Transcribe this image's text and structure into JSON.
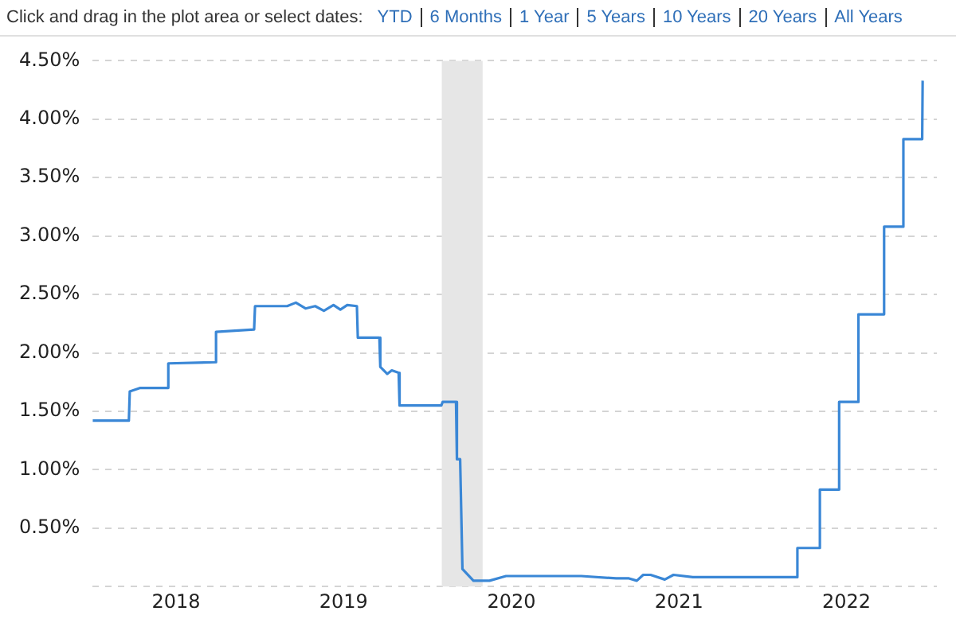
{
  "chart_data": {
    "type": "line",
    "annotations": [
      "Click and drag in the plot area or select dates:",
      "YTD",
      "6 Months",
      "1 Year",
      "5 Years",
      "10 Years",
      "20 Years",
      "All Years"
    ],
    "x": [
      "2018-01-01",
      "2018-03-21",
      "2018-03-23",
      "2018-04-15",
      "2018-06-13",
      "2018-06-15",
      "2018-09-25",
      "2018-09-27",
      "2018-12-19",
      "2018-12-21",
      "2019-03-01",
      "2019-03-20",
      "2019-04-10",
      "2019-05-01",
      "2019-05-20",
      "2019-06-10",
      "2019-06-25",
      "2019-07-10",
      "2019-07-31",
      "2019-08-02",
      "2019-09-18",
      "2019-09-20",
      "2019-10-05",
      "2019-10-15",
      "2019-10-30",
      "2019-11-01",
      "2020-01-31",
      "2020-02-03",
      "2020-03-03",
      "2020-03-05",
      "2020-03-12",
      "2020-03-17",
      "2020-04-10",
      "2020-05-15",
      "2020-06-20",
      "2020-09-01",
      "2020-12-01",
      "2021-02-15",
      "2021-03-15",
      "2021-04-01",
      "2021-04-15",
      "2021-05-01",
      "2021-06-01",
      "2021-06-20",
      "2021-08-01",
      "2021-11-01",
      "2022-03-16",
      "2022-03-17",
      "2022-05-04",
      "2022-05-05",
      "2022-06-15",
      "2022-06-16",
      "2022-07-27",
      "2022-07-28",
      "2022-09-21",
      "2022-09-22",
      "2022-11-02",
      "2022-11-03",
      "2022-12-14",
      "2022-12-15"
    ],
    "series": [
      {
        "color": "#3a87d6",
        "values": [
          1.42,
          1.42,
          1.67,
          1.7,
          1.7,
          1.91,
          1.92,
          2.18,
          2.2,
          2.4,
          2.4,
          2.43,
          2.38,
          2.4,
          2.36,
          2.41,
          2.37,
          2.41,
          2.4,
          2.13,
          2.13,
          1.88,
          1.82,
          1.85,
          1.83,
          1.55,
          1.55,
          1.58,
          1.58,
          1.09,
          1.09,
          0.15,
          0.05,
          0.05,
          0.09,
          0.09,
          0.09,
          0.07,
          0.07,
          0.05,
          0.1,
          0.1,
          0.06,
          0.1,
          0.08,
          0.08,
          0.08,
          0.33,
          0.33,
          0.83,
          0.83,
          1.58,
          1.58,
          2.33,
          2.33,
          3.08,
          3.08,
          3.83,
          3.83,
          4.33
        ]
      }
    ],
    "xlim": [
      "2018-01-01",
      "2023-01-15"
    ],
    "xticks": [
      {
        "value": "2018-07-02",
        "label": "2018"
      },
      {
        "value": "2019-07-02",
        "label": "2019"
      },
      {
        "value": "2020-07-02",
        "label": "2020"
      },
      {
        "value": "2021-07-02",
        "label": "2021"
      },
      {
        "value": "2022-07-02",
        "label": "2022"
      }
    ],
    "ylim": [
      0,
      4.5
    ],
    "yticks": [
      {
        "value": 0,
        "label": null
      },
      {
        "value": 0.5,
        "label": "0.50%"
      },
      {
        "value": 1,
        "label": "1.00%"
      },
      {
        "value": 1.5,
        "label": "1.50%"
      },
      {
        "value": 2,
        "label": "2.00%"
      },
      {
        "value": 2.5,
        "label": "2.50%"
      },
      {
        "value": 3,
        "label": "3.00%"
      },
      {
        "value": 3.5,
        "label": "3.50%"
      },
      {
        "value": 4,
        "label": "4.00%"
      },
      {
        "value": 4.5,
        "label": "4.50%"
      }
    ],
    "bands": [
      {
        "axis": "x",
        "from": "2020-02-01",
        "to": "2020-04-30",
        "color": "#e6e6e6"
      }
    ],
    "grid": "y",
    "legend": false,
    "marker": "none",
    "line_style": "solid"
  }
}
